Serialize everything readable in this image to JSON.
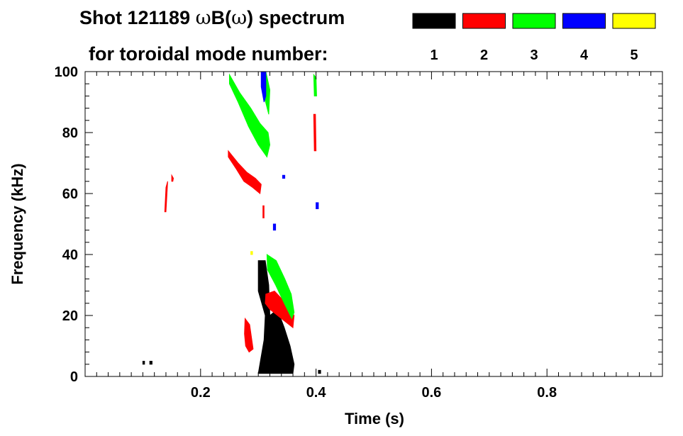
{
  "chart_data": {
    "type": "scatter",
    "title_line1_prefix": "Shot 121189 ",
    "title_line1_omega": "ω",
    "title_line1_b": "B(",
    "title_line1_omega2": "ω",
    "title_line1_suffix": ") spectrum",
    "title_line2": "for toroidal mode number:",
    "xlabel": "Time (s)",
    "ylabel": "Frequency (kHz)",
    "xlim": [
      0.0,
      1.0
    ],
    "ylim": [
      0,
      100
    ],
    "x_ticks": [
      "0.2",
      "0.4",
      "0.6",
      "0.8"
    ],
    "x_tick_values": [
      0.2,
      0.4,
      0.6,
      0.8
    ],
    "y_ticks": [
      "0",
      "20",
      "40",
      "60",
      "80",
      "100"
    ],
    "y_tick_values": [
      0,
      20,
      40,
      60,
      80,
      100
    ],
    "legend": [
      {
        "label": "1",
        "color": "#000000"
      },
      {
        "label": "2",
        "color": "#ff0000"
      },
      {
        "label": "3",
        "color": "#00ff00"
      },
      {
        "label": "4",
        "color": "#0000ff"
      },
      {
        "label": "5",
        "color": "#ffff00"
      }
    ],
    "regions": [
      {
        "mode": 1,
        "points": [
          [
            0.3,
            38
          ],
          [
            0.312,
            38
          ],
          [
            0.318,
            30
          ],
          [
            0.32,
            20
          ],
          [
            0.333,
            22
          ],
          [
            0.345,
            16
          ],
          [
            0.355,
            10
          ],
          [
            0.362,
            4
          ],
          [
            0.36,
            1
          ],
          [
            0.33,
            1
          ],
          [
            0.3,
            1
          ],
          [
            0.31,
            12
          ],
          [
            0.312,
            20
          ],
          [
            0.3,
            28
          ]
        ]
      },
      {
        "mode": 1,
        "points": [
          [
            0.1,
            5
          ],
          [
            0.103,
            5
          ],
          [
            0.103,
            4
          ],
          [
            0.1,
            4
          ]
        ]
      },
      {
        "mode": 1,
        "points": [
          [
            0.112,
            5
          ],
          [
            0.116,
            5
          ],
          [
            0.116,
            4
          ],
          [
            0.112,
            4
          ]
        ]
      },
      {
        "mode": 1,
        "points": [
          [
            0.404,
            2
          ],
          [
            0.408,
            2
          ],
          [
            0.408,
            1
          ],
          [
            0.404,
            1
          ]
        ]
      },
      {
        "mode": 2,
        "points": [
          [
            0.277,
            19
          ],
          [
            0.285,
            17
          ],
          [
            0.291,
            9
          ],
          [
            0.284,
            8
          ],
          [
            0.278,
            10
          ],
          [
            0.276,
            14
          ]
        ]
      },
      {
        "mode": 2,
        "points": [
          [
            0.313,
            27
          ],
          [
            0.328,
            28
          ],
          [
            0.348,
            24
          ],
          [
            0.362,
            20
          ],
          [
            0.36,
            16
          ],
          [
            0.34,
            19
          ],
          [
            0.32,
            22
          ],
          [
            0.312,
            24
          ]
        ]
      },
      {
        "mode": 2,
        "points": [
          [
            0.248,
            74
          ],
          [
            0.265,
            70
          ],
          [
            0.28,
            67
          ],
          [
            0.295,
            65
          ],
          [
            0.305,
            63
          ],
          [
            0.303,
            60
          ],
          [
            0.29,
            62
          ],
          [
            0.275,
            64
          ],
          [
            0.262,
            68
          ],
          [
            0.248,
            72
          ]
        ]
      },
      {
        "mode": 2,
        "points": [
          [
            0.14,
            62
          ],
          [
            0.143,
            64
          ],
          [
            0.14,
            54
          ],
          [
            0.138,
            54
          ]
        ]
      },
      {
        "mode": 2,
        "points": [
          [
            0.15,
            66
          ],
          [
            0.153,
            65
          ],
          [
            0.152,
            64
          ],
          [
            0.15,
            64
          ]
        ]
      },
      {
        "mode": 2,
        "points": [
          [
            0.396,
            86
          ],
          [
            0.399,
            86
          ],
          [
            0.4,
            74
          ],
          [
            0.397,
            74
          ]
        ]
      },
      {
        "mode": 2,
        "points": [
          [
            0.308,
            56
          ],
          [
            0.31,
            56
          ],
          [
            0.31,
            52
          ],
          [
            0.308,
            52
          ]
        ]
      },
      {
        "mode": 3,
        "points": [
          [
            0.25,
            99
          ],
          [
            0.268,
            93
          ],
          [
            0.287,
            88
          ],
          [
            0.303,
            83
          ],
          [
            0.317,
            80
          ],
          [
            0.32,
            76
          ],
          [
            0.315,
            72
          ],
          [
            0.3,
            76
          ],
          [
            0.283,
            82
          ],
          [
            0.265,
            90
          ],
          [
            0.25,
            96
          ]
        ]
      },
      {
        "mode": 3,
        "points": [
          [
            0.313,
            100
          ],
          [
            0.32,
            94
          ],
          [
            0.318,
            86
          ],
          [
            0.31,
            92
          ]
        ]
      },
      {
        "mode": 3,
        "points": [
          [
            0.315,
            40
          ],
          [
            0.331,
            38
          ],
          [
            0.346,
            32
          ],
          [
            0.357,
            27
          ],
          [
            0.362,
            21
          ],
          [
            0.358,
            19
          ],
          [
            0.345,
            24
          ],
          [
            0.33,
            30
          ],
          [
            0.316,
            35
          ]
        ]
      },
      {
        "mode": 3,
        "points": [
          [
            0.396,
            99
          ],
          [
            0.4,
            98
          ],
          [
            0.401,
            92
          ],
          [
            0.397,
            92
          ]
        ]
      },
      {
        "mode": 4,
        "points": [
          [
            0.305,
            100
          ],
          [
            0.313,
            100
          ],
          [
            0.313,
            92
          ],
          [
            0.31,
            90
          ],
          [
            0.305,
            95
          ]
        ]
      },
      {
        "mode": 4,
        "points": [
          [
            0.326,
            50
          ],
          [
            0.33,
            50
          ],
          [
            0.33,
            48
          ],
          [
            0.326,
            48
          ]
        ]
      },
      {
        "mode": 4,
        "points": [
          [
            0.342,
            66
          ],
          [
            0.346,
            66
          ],
          [
            0.346,
            65
          ],
          [
            0.342,
            65
          ]
        ]
      },
      {
        "mode": 4,
        "points": [
          [
            0.4,
            57
          ],
          [
            0.404,
            57
          ],
          [
            0.404,
            55
          ],
          [
            0.4,
            55
          ]
        ]
      },
      {
        "mode": 5,
        "points": [
          [
            0.287,
            41
          ],
          [
            0.29,
            41
          ],
          [
            0.29,
            40
          ],
          [
            0.287,
            40
          ]
        ]
      }
    ]
  }
}
